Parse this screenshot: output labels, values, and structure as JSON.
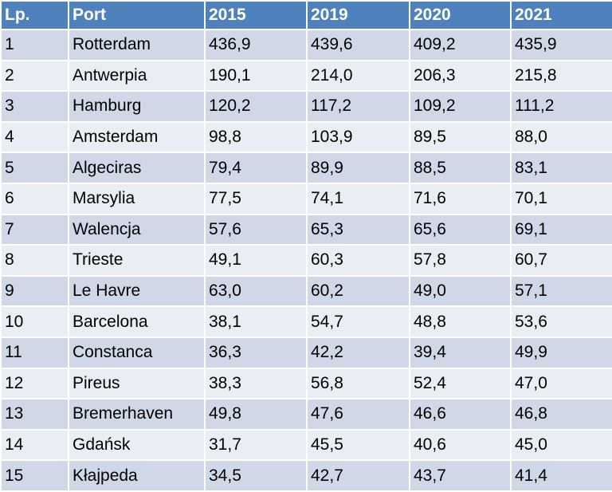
{
  "table": {
    "headers": [
      "Lp.",
      "Port",
      "2015",
      "2019",
      "2020",
      "2021"
    ],
    "rows": [
      [
        "1",
        "Rotterdam",
        "436,9",
        "439,6",
        "409,2",
        "435,9"
      ],
      [
        "2",
        "Antwerpia",
        "190,1",
        "214,0",
        "206,3",
        "215,8"
      ],
      [
        "3",
        "Hamburg",
        "120,2",
        "117,2",
        "109,2",
        "111,2"
      ],
      [
        "4",
        "Amsterdam",
        "98,8",
        "103,9",
        "89,5",
        "88,0"
      ],
      [
        "5",
        "Algeciras",
        "79,4",
        "89,9",
        "88,5",
        "83,1"
      ],
      [
        "6",
        "Marsylia",
        "77,5",
        "74,1",
        "71,6",
        "70,1"
      ],
      [
        "7",
        "Walencja",
        "57,6",
        "65,3",
        "65,6",
        "69,1"
      ],
      [
        "8",
        "Trieste",
        "49,1",
        "60,3",
        "57,8",
        "60,7"
      ],
      [
        "9",
        "Le Havre",
        "63,0",
        "60,2",
        "49,0",
        "57,1"
      ],
      [
        "10",
        "Barcelona",
        "38,1",
        "54,7",
        "48,8",
        "53,6"
      ],
      [
        "11",
        "Constanca",
        "36,3",
        "42,2",
        "39,4",
        "49,9"
      ],
      [
        "12",
        "Pireus",
        "38,3",
        "56,8",
        "52,4",
        "47,0"
      ],
      [
        "13",
        "Bremerhaven",
        "49,8",
        "47,6",
        "46,6",
        "46,8"
      ],
      [
        "14",
        "Gdańsk",
        "31,7",
        "45,5",
        "40,6",
        "45,0"
      ],
      [
        "15",
        "Kłajpeda",
        "34,5",
        "42,7",
        "43,7",
        "41,4"
      ]
    ]
  },
  "colors": {
    "header_bg": "#4f81bd",
    "row_odd_bg": "#d0d8e8",
    "row_even_bg": "#e9edf4"
  }
}
